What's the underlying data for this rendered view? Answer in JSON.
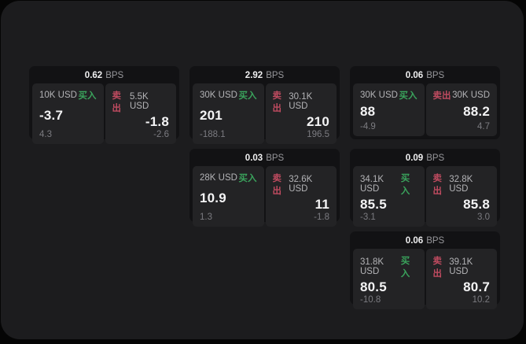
{
  "labels": {
    "bps_suffix": "BPS",
    "buy": "买入",
    "sell": "卖出"
  },
  "colors": {
    "window_bg": "#1c1c1e",
    "card_bg": "#121214",
    "panel_bg": "#232325",
    "buy": "#3aa35c",
    "sell": "#c04b60"
  },
  "cards": [
    {
      "row": 1,
      "col": 1,
      "bps": "0.62",
      "buy": {
        "amount": "10K USD",
        "value": "-3.7",
        "sub": "4.3"
      },
      "sell": {
        "amount": "5.5K USD",
        "value": "-1.8",
        "sub": "-2.6"
      }
    },
    {
      "row": 1,
      "col": 2,
      "bps": "2.92",
      "buy": {
        "amount": "30K USD",
        "value": "201",
        "sub": "-188.1"
      },
      "sell": {
        "amount": "30.1K USD",
        "value": "210",
        "sub": "196.5"
      }
    },
    {
      "row": 1,
      "col": 3,
      "bps": "0.06",
      "buy": {
        "amount": "30K USD",
        "value": "88",
        "sub": "-4.9"
      },
      "sell": {
        "amount": "30K USD",
        "value": "88.2",
        "sub": "4.7"
      }
    },
    {
      "row": 2,
      "col": 2,
      "bps": "0.03",
      "buy": {
        "amount": "28K USD",
        "value": "10.9",
        "sub": "1.3"
      },
      "sell": {
        "amount": "32.6K USD",
        "value": "11",
        "sub": "-1.8"
      }
    },
    {
      "row": 2,
      "col": 3,
      "bps": "0.09",
      "buy": {
        "amount": "34.1K USD",
        "value": "85.5",
        "sub": "-3.1"
      },
      "sell": {
        "amount": "32.8K USD",
        "value": "85.8",
        "sub": "3.0"
      }
    },
    {
      "row": 3,
      "col": 3,
      "bps": "0.06",
      "buy": {
        "amount": "31.8K USD",
        "value": "80.5",
        "sub": "-10.8"
      },
      "sell": {
        "amount": "39.1K USD",
        "value": "80.7",
        "sub": "10.2"
      }
    }
  ]
}
